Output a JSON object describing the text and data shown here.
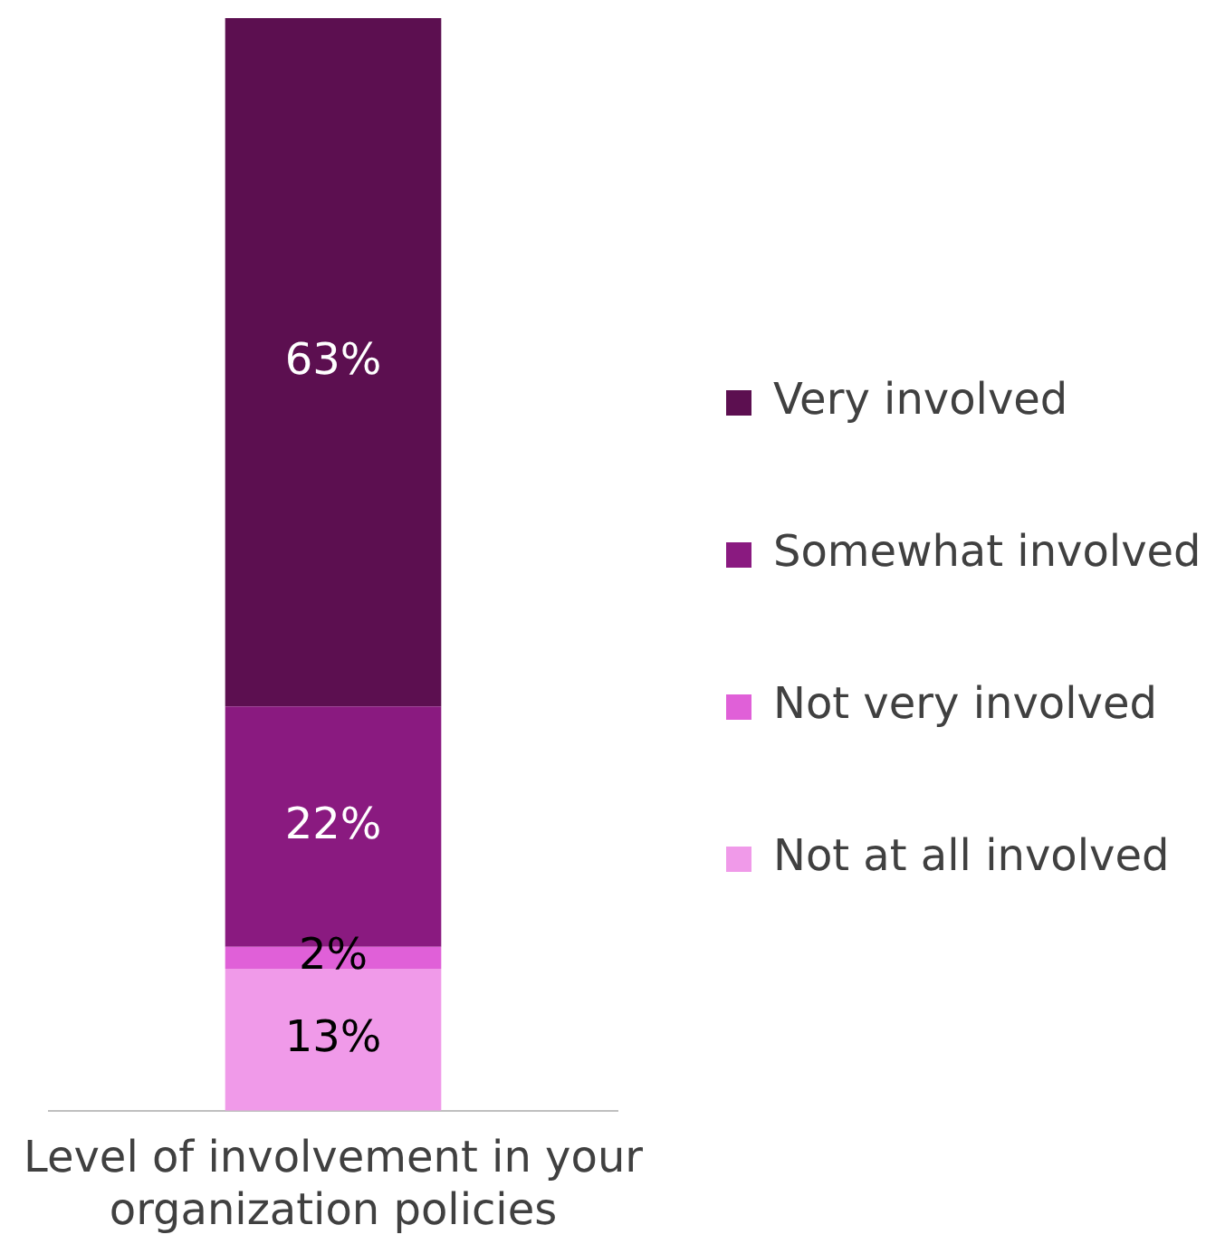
{
  "chart_data": {
    "type": "bar",
    "stacked": true,
    "categories": [
      "Level of involvement in your organization policies"
    ],
    "legend": "right",
    "grid": false,
    "series": [
      {
        "name": "Not at all involved",
        "color": "#f09ae9",
        "values": [
          0.13
        ],
        "value_labels": [
          "13%"
        ]
      },
      {
        "name": "Not very involved",
        "color": "#e060d8",
        "values": [
          0.02
        ],
        "value_labels": [
          "2%"
        ]
      },
      {
        "name": "Somewhat involved",
        "color": "#8a1a80",
        "values": [
          0.22
        ],
        "value_labels": [
          "22%"
        ]
      },
      {
        "name": "Very involved",
        "color": "#5c0f50",
        "values": [
          0.63
        ],
        "value_labels": [
          "63%"
        ]
      }
    ]
  }
}
